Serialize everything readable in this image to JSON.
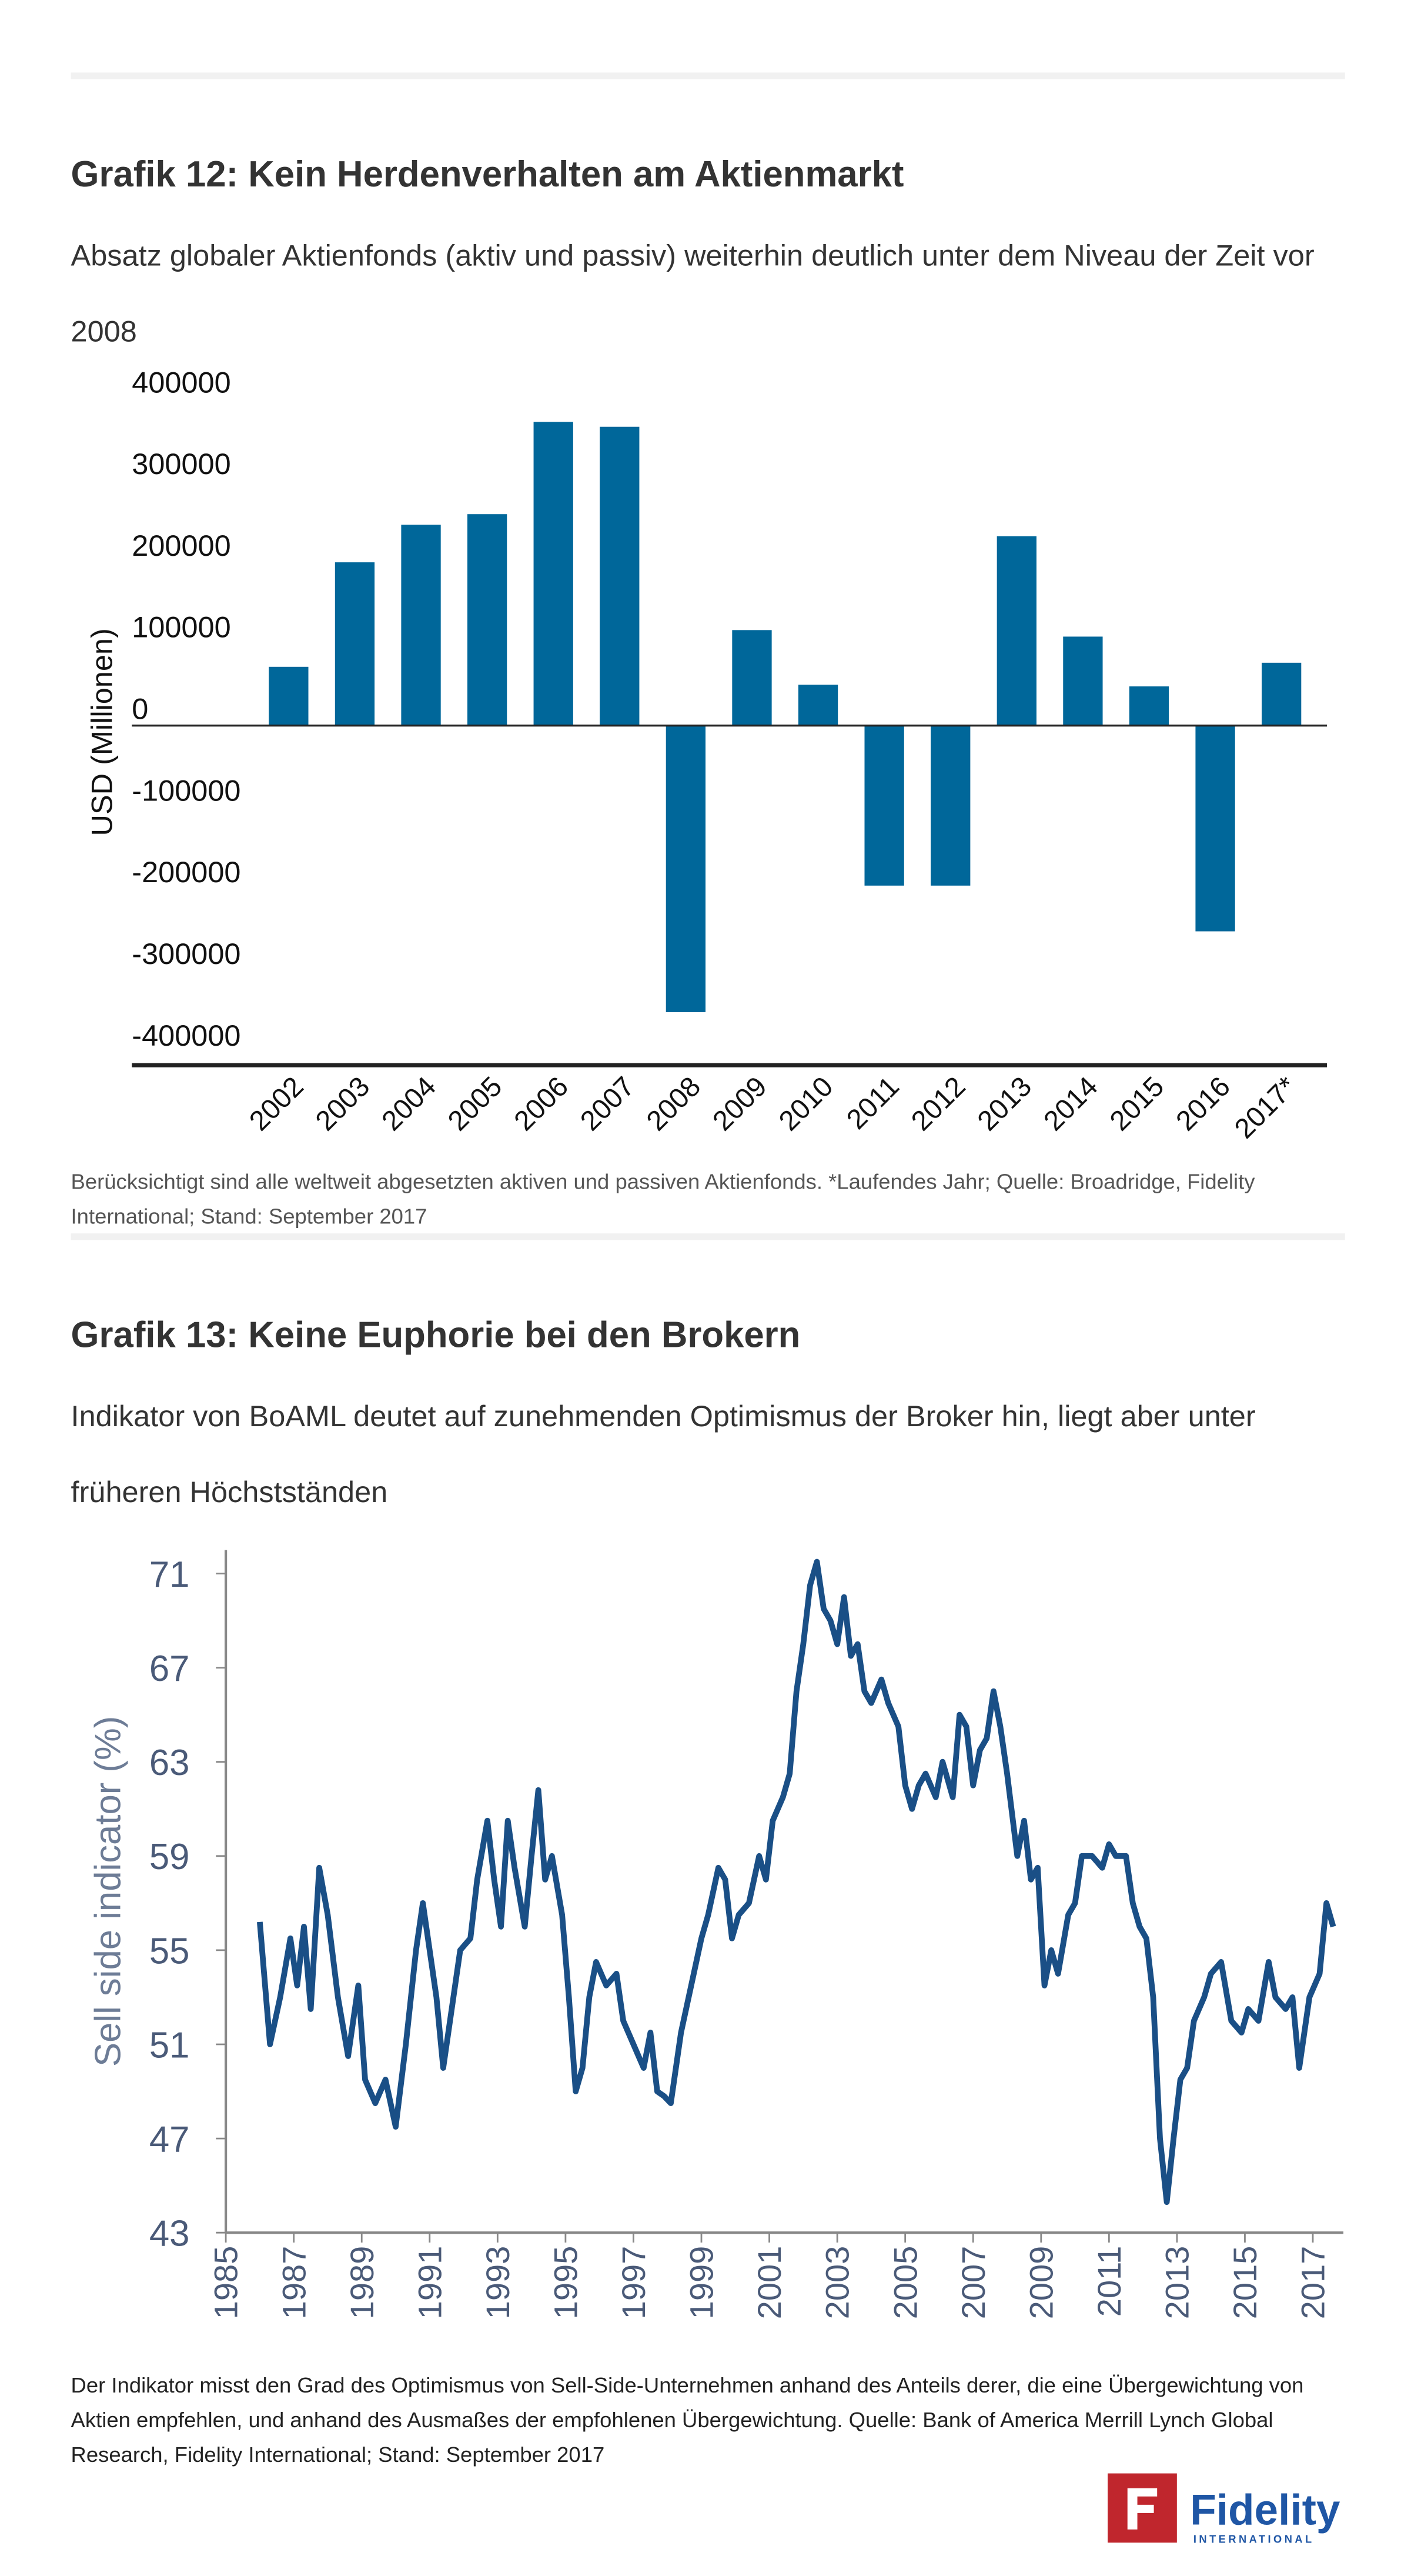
{
  "chart_data": [
    {
      "type": "bar",
      "title": "Grafik 12: Kein Herdenverhalten am Aktienmarkt",
      "subtitle": "Absatz globaler Aktienfonds (aktiv und passiv) weiterhin deutlich unter dem Niveau der Zeit vor 2008",
      "y_label": "USD (Millionen)",
      "note": "Berücksichtigt sind alle weltweit abgesetzten aktiven und passiven Aktienfonds. *Laufendes Jahr; Quelle: Broadridge, Fidelity International; Stand: September 2017",
      "categories": [
        "2002",
        "2003",
        "2004",
        "2005",
        "2006",
        "2007",
        "2008",
        "2009",
        "2010",
        "2011",
        "2012",
        "2013",
        "2014",
        "2015",
        "2016",
        "2017*"
      ],
      "values": [
        72000,
        200000,
        246000,
        259000,
        372000,
        366000,
        -351000,
        117000,
        50000,
        -196000,
        -196000,
        232000,
        109000,
        48000,
        -252000,
        77000
      ],
      "color": "#00679a",
      "ylim": [
        -416000,
        400000
      ],
      "yticks": [
        -400000,
        -300000,
        -200000,
        -100000,
        0,
        100000,
        200000,
        300000,
        400000
      ],
      "grid": false
    },
    {
      "type": "line",
      "title": "Grafik 13: Keine Euphorie bei den Brokern",
      "subtitle": "Indikator von BoAML deutet auf zunehmenden Optimismus der Broker hin, liegt aber unter früheren Höchstständen",
      "y_label": "Sell side indicator  (%)",
      "note": "Der Indikator misst den Grad des Optimismus von Sell-Side-Unternehmen anhand des Anteils derer, die eine Übergewichtung von Aktien empfehlen, und anhand des Ausmaßes der empfohlenen Übergewichtung. Quelle: Bank of America Merrill Lynch Global Research, Fidelity International; Stand: September 2017",
      "x": [
        1986.0,
        1986.3,
        1986.6,
        1986.9,
        1987.1,
        1987.3,
        1987.5,
        1987.75,
        1988.0,
        1988.3,
        1988.6,
        1988.9,
        1989.1,
        1989.4,
        1989.7,
        1990.0,
        1990.3,
        1990.6,
        1990.8,
        1991.0,
        1991.2,
        1991.4,
        1991.7,
        1991.9,
        1992.2,
        1992.4,
        1992.7,
        1992.9,
        1993.1,
        1993.3,
        1993.5,
        1993.8,
        1994.0,
        1994.2,
        1994.4,
        1994.6,
        1994.9,
        1995.1,
        1995.3,
        1995.5,
        1995.7,
        1995.9,
        1996.2,
        1996.5,
        1996.7,
        1997.0,
        1997.3,
        1997.5,
        1997.7,
        1997.9,
        1998.1,
        1998.4,
        1998.7,
        1999.0,
        1999.2,
        1999.5,
        1999.7,
        1999.9,
        2000.1,
        2000.4,
        2000.7,
        2000.9,
        2001.1,
        2001.4,
        2001.6,
        2001.8,
        2002.0,
        2002.2,
        2002.4,
        2002.6,
        2002.8,
        2003.0,
        2003.2,
        2003.4,
        2003.6,
        2003.8,
        2004.0,
        2004.3,
        2004.5,
        2004.8,
        2005.0,
        2005.2,
        2005.4,
        2005.6,
        2005.9,
        2006.1,
        2006.4,
        2006.6,
        2006.8,
        2007.0,
        2007.2,
        2007.4,
        2007.6,
        2007.8,
        2008.0,
        2008.3,
        2008.5,
        2008.7,
        2008.9,
        2009.1,
        2009.3,
        2009.5,
        2009.8,
        2010.0,
        2010.2,
        2010.5,
        2010.8,
        2011.0,
        2011.2,
        2011.5,
        2011.7,
        2011.9,
        2012.1,
        2012.3,
        2012.5,
        2012.7,
        2012.9,
        2013.1,
        2013.3,
        2013.5,
        2013.8,
        2014.0,
        2014.3,
        2014.6,
        2014.9,
        2015.1,
        2015.4,
        2015.7,
        2015.9,
        2016.2,
        2016.4,
        2016.6,
        2016.9,
        2017.2,
        2017.4,
        2017.6
      ],
      "values": [
        56.2,
        51,
        53,
        55.5,
        53.5,
        56,
        52.5,
        58.5,
        56.5,
        53,
        50.5,
        53.5,
        49.5,
        48.5,
        49.5,
        47.5,
        51,
        55,
        57,
        55,
        53,
        50,
        53,
        55,
        55.5,
        58,
        60.5,
        58,
        56,
        60.5,
        58.5,
        56,
        59,
        61.8,
        58,
        59,
        56.5,
        53,
        49,
        50,
        53,
        54.5,
        53.5,
        54,
        52,
        51,
        50,
        51.5,
        49,
        48.8,
        48.5,
        51.5,
        53.5,
        55.5,
        56.5,
        58.5,
        58,
        55.5,
        56.5,
        57,
        59,
        58,
        60.5,
        61.5,
        62.5,
        66,
        68,
        70.5,
        71.5,
        69.5,
        69,
        68,
        70,
        67.5,
        68,
        66,
        65.5,
        66.5,
        65.5,
        64.5,
        62,
        61,
        62,
        62.5,
        61.5,
        63,
        61.5,
        65,
        64.5,
        62,
        63.5,
        64,
        66,
        64.5,
        62.5,
        59,
        60.5,
        58,
        58.5,
        53.5,
        55,
        54,
        56.5,
        57,
        59,
        59,
        58.5,
        59.5,
        59,
        59,
        57,
        56,
        55.5,
        53,
        47,
        44.3,
        47,
        49.5,
        50,
        52,
        53,
        54,
        54.5,
        52,
        51.5,
        52.5,
        52,
        54.5,
        53,
        52.5,
        53,
        50,
        53,
        54,
        57,
        56
      ],
      "color": "#1a4f86",
      "xlim": [
        1985,
        2017.9
      ],
      "xticks": [
        1985,
        1987,
        1989,
        1991,
        1993,
        1995,
        1997,
        1999,
        2001,
        2003,
        2005,
        2007,
        2009,
        2011,
        2013,
        2015,
        2017
      ],
      "ylim": [
        43,
        72
      ],
      "yticks": [
        43,
        47,
        51,
        55,
        59,
        63,
        67,
        71
      ],
      "grid": false
    }
  ],
  "logo": {
    "brand": "Fidelity",
    "tagline": "INTERNATIONAL"
  }
}
